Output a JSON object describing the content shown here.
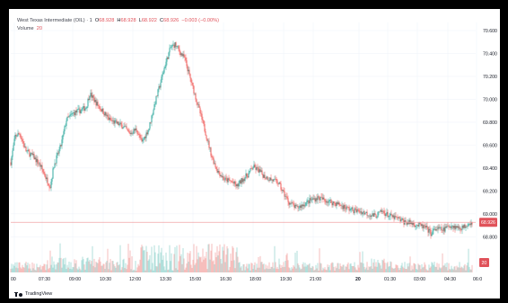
{
  "legend": {
    "symbol": "West Texas Intermediate (OIL) · 1",
    "open_label": "O",
    "open": "68.928",
    "high_label": "H",
    "high": "68.928",
    "low_label": "L",
    "low": "68.922",
    "close_label": "C",
    "close": "68.926",
    "change": "−0.003 (−0.00%)",
    "volume_label": "Volume",
    "volume_value": "20"
  },
  "footer": {
    "brand": "TradingView"
  },
  "colors": {
    "up": "#26a69a",
    "down": "#ef5350",
    "price_line": "#f0a3a6",
    "label_bg": "#e0525a",
    "vol_up": "#a8dcd7",
    "vol_down": "#f6b7b5"
  },
  "chart_data": {
    "type": "candlestick",
    "ylim": [
      68.7,
      70.6
    ],
    "y_ticks": [
      "70.600",
      "70.400",
      "70.200",
      "70.000",
      "69.800",
      "69.600",
      "69.400",
      "69.200",
      "69.000",
      "68.800"
    ],
    "x_ticks": [
      "00",
      "07:30",
      "09:00",
      "10:30",
      "12:00",
      "13:30",
      "15:00",
      "16:30",
      "18:00",
      "19:30",
      "21:00",
      "20",
      "01:30",
      "03:00",
      "04:30",
      "06:0"
    ],
    "price_path": [
      [
        0,
        69.45
      ],
      [
        5,
        69.68
      ],
      [
        10,
        69.7
      ],
      [
        17,
        69.55
      ],
      [
        25,
        69.5
      ],
      [
        33,
        69.42
      ],
      [
        40,
        69.3
      ],
      [
        44,
        69.24
      ],
      [
        48,
        69.42
      ],
      [
        56,
        69.6
      ],
      [
        62,
        69.82
      ],
      [
        70,
        69.88
      ],
      [
        77,
        69.9
      ],
      [
        84,
        69.93
      ],
      [
        88,
        70.05
      ],
      [
        94,
        69.98
      ],
      [
        102,
        69.9
      ],
      [
        110,
        69.82
      ],
      [
        118,
        69.79
      ],
      [
        126,
        69.76
      ],
      [
        132,
        69.7
      ],
      [
        140,
        69.74
      ],
      [
        146,
        69.62
      ],
      [
        154,
        69.75
      ],
      [
        160,
        69.95
      ],
      [
        166,
        70.12
      ],
      [
        172,
        70.3
      ],
      [
        178,
        70.45
      ],
      [
        183,
        70.48
      ],
      [
        188,
        70.42
      ],
      [
        194,
        70.35
      ],
      [
        200,
        70.18
      ],
      [
        206,
        70.02
      ],
      [
        212,
        69.85
      ],
      [
        218,
        69.68
      ],
      [
        224,
        69.5
      ],
      [
        230,
        69.38
      ],
      [
        238,
        69.3
      ],
      [
        246,
        69.28
      ],
      [
        252,
        69.24
      ],
      [
        258,
        69.3
      ],
      [
        264,
        69.34
      ],
      [
        270,
        69.41
      ],
      [
        276,
        69.38
      ],
      [
        282,
        69.33
      ],
      [
        290,
        69.3
      ],
      [
        298,
        69.27
      ],
      [
        304,
        69.18
      ],
      [
        310,
        69.1
      ],
      [
        318,
        69.05
      ],
      [
        326,
        69.08
      ],
      [
        334,
        69.12
      ],
      [
        342,
        69.14
      ],
      [
        350,
        69.12
      ],
      [
        358,
        69.1
      ],
      [
        366,
        69.08
      ],
      [
        374,
        69.05
      ],
      [
        382,
        69.03
      ],
      [
        390,
        69.02
      ],
      [
        398,
        69.0
      ],
      [
        406,
        68.98
      ],
      [
        414,
        69.02
      ],
      [
        422,
        68.98
      ],
      [
        430,
        68.96
      ],
      [
        438,
        68.93
      ],
      [
        446,
        68.92
      ],
      [
        454,
        68.9
      ],
      [
        462,
        68.88
      ],
      [
        468,
        68.83
      ],
      [
        474,
        68.87
      ],
      [
        482,
        68.86
      ],
      [
        490,
        68.9
      ],
      [
        498,
        68.88
      ],
      [
        504,
        68.88
      ],
      [
        510,
        68.92
      ],
      [
        514,
        68.926
      ]
    ],
    "last_price": "68.926",
    "volume_last": "20"
  }
}
